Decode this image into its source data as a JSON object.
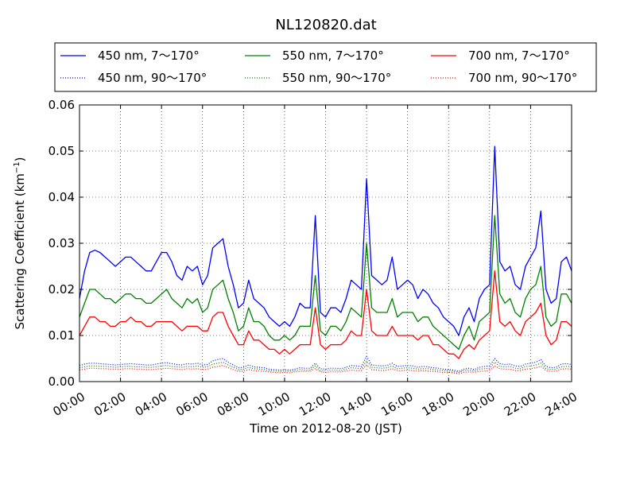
{
  "chart_data": {
    "type": "line",
    "title": "NL120820.dat",
    "xlabel": "Time on 2012-08-20 (JST)",
    "ylabel_main": "Scattering Coefficient (km",
    "ylabel_sup": "−1",
    "ylabel_close": ")",
    "xlim_hours": [
      0,
      24
    ],
    "ylim": [
      0,
      0.06
    ],
    "grid": true,
    "legend_position": "top, above plot",
    "x_ticks": [
      {
        "h": 0,
        "label": "00:00"
      },
      {
        "h": 2,
        "label": "02:00"
      },
      {
        "h": 4,
        "label": "04:00"
      },
      {
        "h": 6,
        "label": "06:00"
      },
      {
        "h": 8,
        "label": "08:00"
      },
      {
        "h": 10,
        "label": "10:00"
      },
      {
        "h": 12,
        "label": "12:00"
      },
      {
        "h": 14,
        "label": "14:00"
      },
      {
        "h": 16,
        "label": "16:00"
      },
      {
        "h": 18,
        "label": "18:00"
      },
      {
        "h": 20,
        "label": "20:00"
      },
      {
        "h": 22,
        "label": "22:00"
      },
      {
        "h": 24,
        "label": "24:00"
      }
    ],
    "y_ticks": [
      {
        "v": 0,
        "label": "0.00"
      },
      {
        "v": 0.01,
        "label": "0.01"
      },
      {
        "v": 0.02,
        "label": "0.02"
      },
      {
        "v": 0.03,
        "label": "0.03"
      },
      {
        "v": 0.04,
        "label": "0.04"
      },
      {
        "v": 0.05,
        "label": "0.05"
      },
      {
        "v": 0.06,
        "label": "0.06"
      }
    ],
    "x_hours": [
      0,
      0.25,
      0.5,
      0.75,
      1,
      1.25,
      1.5,
      1.75,
      2,
      2.25,
      2.5,
      2.75,
      3,
      3.25,
      3.5,
      3.75,
      4,
      4.25,
      4.5,
      4.75,
      5,
      5.25,
      5.5,
      5.75,
      6,
      6.25,
      6.5,
      6.75,
      7,
      7.25,
      7.5,
      7.75,
      8,
      8.25,
      8.5,
      8.75,
      9,
      9.25,
      9.5,
      9.75,
      10,
      10.25,
      10.5,
      10.75,
      11,
      11.25,
      11.5,
      11.75,
      12,
      12.25,
      12.5,
      12.75,
      13,
      13.25,
      13.5,
      13.75,
      14,
      14.25,
      14.5,
      14.75,
      15,
      15.25,
      15.5,
      15.75,
      16,
      16.25,
      16.5,
      16.75,
      17,
      17.25,
      17.5,
      17.75,
      18,
      18.25,
      18.5,
      18.75,
      19,
      19.25,
      19.5,
      19.75,
      20,
      20.25,
      20.5,
      20.75,
      21,
      21.25,
      21.5,
      21.75,
      22,
      22.25,
      22.5,
      22.75,
      23,
      23.25,
      23.5,
      23.75,
      24
    ],
    "series": [
      {
        "name": "450 nm, 7～170°",
        "color": "#0000ff",
        "style": "solid",
        "values": [
          0.018,
          0.024,
          0.028,
          0.0285,
          0.028,
          0.027,
          0.026,
          0.025,
          0.026,
          0.027,
          0.027,
          0.026,
          0.025,
          0.024,
          0.024,
          0.026,
          0.028,
          0.028,
          0.026,
          0.023,
          0.022,
          0.025,
          0.024,
          0.025,
          0.021,
          0.023,
          0.029,
          0.03,
          0.031,
          0.025,
          0.021,
          0.016,
          0.017,
          0.022,
          0.018,
          0.017,
          0.016,
          0.014,
          0.013,
          0.012,
          0.013,
          0.012,
          0.014,
          0.017,
          0.016,
          0.016,
          0.036,
          0.015,
          0.014,
          0.016,
          0.016,
          0.015,
          0.018,
          0.022,
          0.021,
          0.02,
          0.044,
          0.023,
          0.022,
          0.021,
          0.022,
          0.027,
          0.02,
          0.021,
          0.022,
          0.021,
          0.018,
          0.02,
          0.019,
          0.017,
          0.016,
          0.014,
          0.013,
          0.012,
          0.01,
          0.014,
          0.016,
          0.013,
          0.018,
          0.02,
          0.021,
          0.051,
          0.026,
          0.024,
          0.025,
          0.021,
          0.02,
          0.025,
          0.027,
          0.029,
          0.037,
          0.02,
          0.017,
          0.018,
          0.026,
          0.027,
          0.024
        ]
      },
      {
        "name": "550 nm, 7～170°",
        "color": "#008000",
        "style": "solid",
        "values": [
          0.014,
          0.017,
          0.02,
          0.02,
          0.019,
          0.018,
          0.018,
          0.017,
          0.018,
          0.019,
          0.019,
          0.018,
          0.018,
          0.017,
          0.017,
          0.018,
          0.019,
          0.02,
          0.018,
          0.017,
          0.016,
          0.018,
          0.017,
          0.018,
          0.015,
          0.016,
          0.02,
          0.021,
          0.022,
          0.018,
          0.015,
          0.011,
          0.012,
          0.016,
          0.013,
          0.013,
          0.012,
          0.01,
          0.009,
          0.009,
          0.01,
          0.009,
          0.01,
          0.012,
          0.012,
          0.012,
          0.023,
          0.011,
          0.01,
          0.012,
          0.012,
          0.011,
          0.013,
          0.016,
          0.015,
          0.014,
          0.03,
          0.016,
          0.015,
          0.015,
          0.015,
          0.018,
          0.014,
          0.015,
          0.015,
          0.015,
          0.013,
          0.014,
          0.014,
          0.012,
          0.011,
          0.01,
          0.009,
          0.008,
          0.007,
          0.01,
          0.012,
          0.009,
          0.013,
          0.014,
          0.015,
          0.036,
          0.019,
          0.017,
          0.018,
          0.015,
          0.014,
          0.018,
          0.02,
          0.021,
          0.025,
          0.014,
          0.012,
          0.013,
          0.019,
          0.019,
          0.017
        ]
      },
      {
        "name": "700 nm, 7～170°",
        "color": "#ff0000",
        "style": "solid",
        "values": [
          0.01,
          0.012,
          0.014,
          0.014,
          0.013,
          0.013,
          0.012,
          0.012,
          0.013,
          0.013,
          0.014,
          0.013,
          0.013,
          0.012,
          0.012,
          0.013,
          0.013,
          0.013,
          0.013,
          0.012,
          0.011,
          0.012,
          0.012,
          0.012,
          0.011,
          0.011,
          0.014,
          0.015,
          0.015,
          0.012,
          0.01,
          0.008,
          0.008,
          0.011,
          0.009,
          0.009,
          0.008,
          0.007,
          0.007,
          0.006,
          0.007,
          0.006,
          0.007,
          0.008,
          0.008,
          0.008,
          0.016,
          0.008,
          0.007,
          0.008,
          0.008,
          0.008,
          0.009,
          0.011,
          0.01,
          0.01,
          0.02,
          0.011,
          0.01,
          0.01,
          0.01,
          0.012,
          0.01,
          0.01,
          0.01,
          0.01,
          0.009,
          0.01,
          0.01,
          0.008,
          0.008,
          0.007,
          0.006,
          0.006,
          0.005,
          0.007,
          0.008,
          0.007,
          0.009,
          0.01,
          0.011,
          0.024,
          0.013,
          0.012,
          0.013,
          0.011,
          0.01,
          0.013,
          0.014,
          0.015,
          0.017,
          0.01,
          0.008,
          0.009,
          0.013,
          0.013,
          0.012
        ]
      },
      {
        "name": "450 nm, 90～170°",
        "color": "#0000ff",
        "style": "dotted",
        "values": [
          0.0035,
          0.0038,
          0.004,
          0.004,
          0.0039,
          0.0038,
          0.0037,
          0.0036,
          0.0037,
          0.0038,
          0.0039,
          0.0038,
          0.0037,
          0.0036,
          0.0036,
          0.0038,
          0.004,
          0.0041,
          0.0039,
          0.0037,
          0.0036,
          0.0039,
          0.0038,
          0.004,
          0.0036,
          0.0037,
          0.0045,
          0.0048,
          0.005,
          0.0042,
          0.0036,
          0.003,
          0.0031,
          0.0036,
          0.0032,
          0.0031,
          0.003,
          0.0027,
          0.0026,
          0.0025,
          0.0026,
          0.0025,
          0.0027,
          0.003,
          0.0029,
          0.0029,
          0.004,
          0.0028,
          0.0027,
          0.0029,
          0.0029,
          0.0028,
          0.0031,
          0.0035,
          0.0034,
          0.0033,
          0.0055,
          0.0036,
          0.0035,
          0.0034,
          0.0035,
          0.004,
          0.0033,
          0.0034,
          0.0035,
          0.0034,
          0.0031,
          0.0033,
          0.0032,
          0.003,
          0.0029,
          0.0027,
          0.0026,
          0.0025,
          0.0022,
          0.0027,
          0.0029,
          0.0026,
          0.0031,
          0.0033,
          0.0034,
          0.005,
          0.0039,
          0.0037,
          0.0038,
          0.0034,
          0.0033,
          0.0038,
          0.004,
          0.0042,
          0.0048,
          0.0033,
          0.003,
          0.0031,
          0.0038,
          0.0039,
          0.0037
        ]
      },
      {
        "name": "550 nm, 90～170°",
        "color": "#008000",
        "style": "dotted",
        "values": [
          0.003,
          0.0032,
          0.0034,
          0.0034,
          0.0033,
          0.0033,
          0.0032,
          0.0031,
          0.0032,
          0.0033,
          0.0033,
          0.0032,
          0.0032,
          0.0031,
          0.0031,
          0.0032,
          0.0034,
          0.0035,
          0.0033,
          0.0032,
          0.0031,
          0.0033,
          0.0032,
          0.0034,
          0.0031,
          0.0032,
          0.0038,
          0.004,
          0.0042,
          0.0036,
          0.0031,
          0.0026,
          0.0027,
          0.0031,
          0.0028,
          0.0027,
          0.0026,
          0.0024,
          0.0023,
          0.0022,
          0.0023,
          0.0022,
          0.0024,
          0.0026,
          0.0025,
          0.0025,
          0.0034,
          0.0024,
          0.0024,
          0.0025,
          0.0025,
          0.0024,
          0.0027,
          0.003,
          0.0029,
          0.0028,
          0.0045,
          0.0031,
          0.003,
          0.0029,
          0.003,
          0.0034,
          0.0028,
          0.0029,
          0.003,
          0.0029,
          0.0027,
          0.0028,
          0.0028,
          0.0026,
          0.0025,
          0.0024,
          0.0023,
          0.0022,
          0.002,
          0.0024,
          0.0025,
          0.0023,
          0.0027,
          0.0028,
          0.0029,
          0.0042,
          0.0033,
          0.0032,
          0.0033,
          0.0029,
          0.0028,
          0.0033,
          0.0034,
          0.0036,
          0.004,
          0.0028,
          0.0026,
          0.0027,
          0.0032,
          0.0033,
          0.0032
        ]
      },
      {
        "name": "700 nm, 90～170°",
        "color": "#ff0000",
        "style": "dotted",
        "values": [
          0.0025,
          0.0027,
          0.0029,
          0.0029,
          0.0028,
          0.0028,
          0.0027,
          0.0027,
          0.0027,
          0.0028,
          0.0028,
          0.0027,
          0.0027,
          0.0026,
          0.0026,
          0.0027,
          0.0028,
          0.0029,
          0.0028,
          0.0027,
          0.0026,
          0.0028,
          0.0027,
          0.0028,
          0.0026,
          0.0027,
          0.0031,
          0.0033,
          0.0035,
          0.003,
          0.0026,
          0.0022,
          0.0023,
          0.0026,
          0.0024,
          0.0023,
          0.0022,
          0.0021,
          0.002,
          0.0019,
          0.002,
          0.0019,
          0.0021,
          0.0022,
          0.0022,
          0.0022,
          0.0028,
          0.0021,
          0.002,
          0.0021,
          0.0021,
          0.0021,
          0.0023,
          0.0025,
          0.0024,
          0.0024,
          0.0036,
          0.0026,
          0.0025,
          0.0024,
          0.0025,
          0.0028,
          0.0024,
          0.0024,
          0.0025,
          0.0024,
          0.0023,
          0.0024,
          0.0023,
          0.0022,
          0.0021,
          0.002,
          0.002,
          0.0019,
          0.0017,
          0.002,
          0.0021,
          0.002,
          0.0022,
          0.0023,
          0.0024,
          0.0034,
          0.0028,
          0.0027,
          0.0027,
          0.0024,
          0.0024,
          0.0027,
          0.0028,
          0.003,
          0.0033,
          0.0024,
          0.0022,
          0.0023,
          0.0027,
          0.0028,
          0.0027
        ]
      }
    ]
  }
}
